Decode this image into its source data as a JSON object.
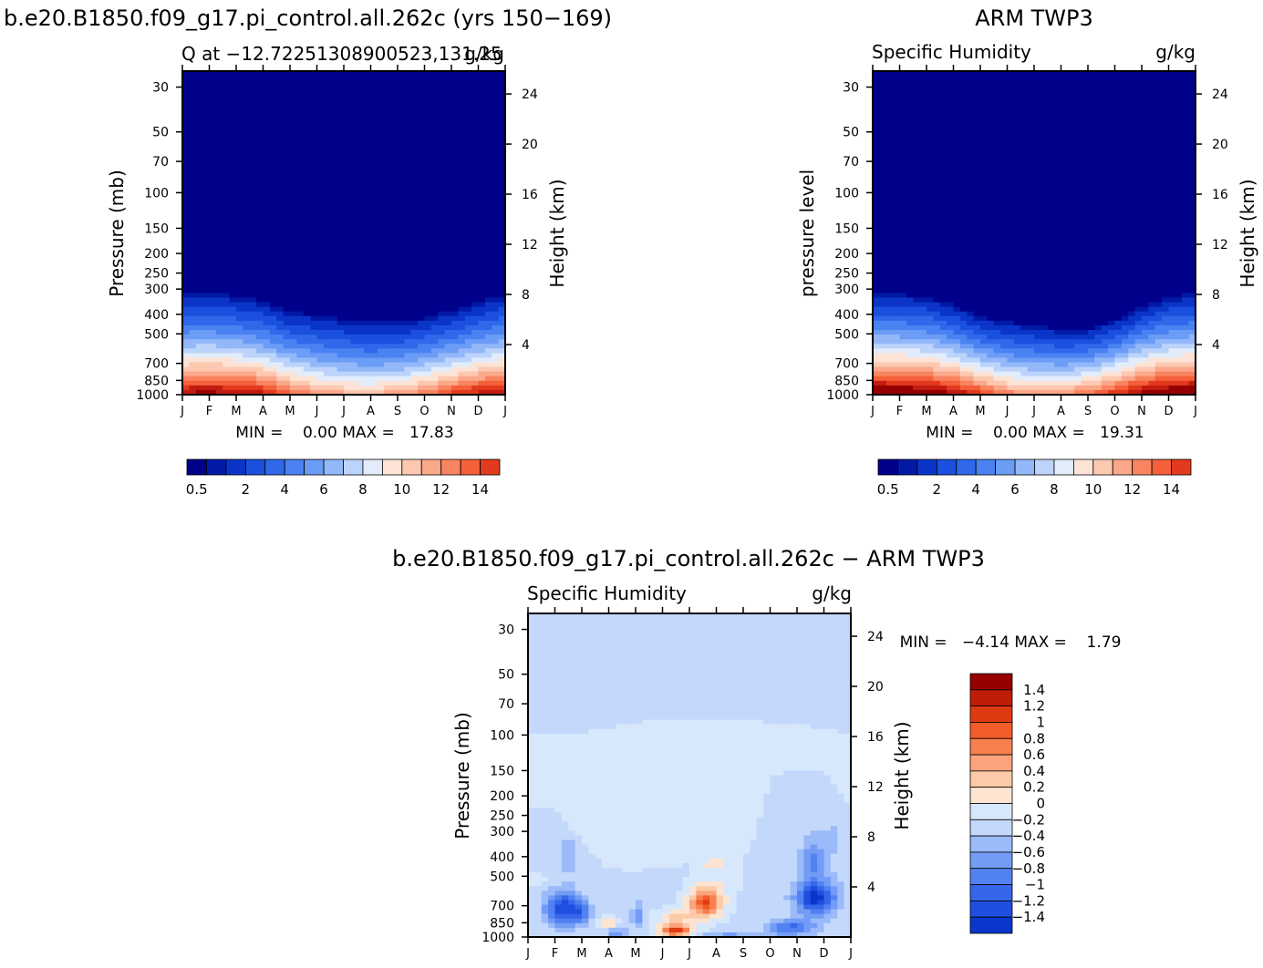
{
  "header": {
    "model_title": "b.e20.B1850.f09_g17.pi_control.all.262c (yrs 150−169)",
    "obs_title": "ARM TWP3",
    "diff_title": "b.e20.B1850.f09_g17.pi_control.all.262c − ARM TWP3"
  },
  "colors": {
    "abs_levels": [
      "#00008b",
      "#001aa6",
      "#0a35c8",
      "#1a50dd",
      "#2f68ea",
      "#4a82f2",
      "#6b9cf6",
      "#93b8f9",
      "#bcd4fb",
      "#e2ecfb",
      "#fde3d5",
      "#fcc8b0",
      "#fba78a",
      "#f98460",
      "#f4603a",
      "#e23a1e",
      "#c21c10",
      "#960000"
    ],
    "diff_levels": [
      "#00148f",
      "#0020b2",
      "#0b36cc",
      "#1f4fdf",
      "#3666ea",
      "#5282f2",
      "#729cf6",
      "#9abaf9",
      "#c4d8fb",
      "#d8e8fc",
      "#fde4d1",
      "#fccaa7",
      "#fba47c",
      "#f8804f",
      "#f25c28",
      "#e03a12",
      "#bf1d06",
      "#960000"
    ]
  },
  "chart_data": [
    {
      "id": "model",
      "type": "heatmap",
      "subtitle_left": "Q at −12.72251308900523,131.25",
      "subtitle_right": "g/kg",
      "ylabel": "Pressure (mb)",
      "ylabel_right": "Height (km)",
      "months": [
        "J",
        "F",
        "M",
        "A",
        "M",
        "J",
        "J",
        "A",
        "S",
        "O",
        "N",
        "D",
        "J"
      ],
      "pressure_ticks": [
        30,
        50,
        70,
        100,
        150,
        200,
        250,
        300,
        400,
        500,
        700,
        850,
        1000
      ],
      "height_ticks": [
        4,
        8,
        12,
        16,
        20,
        24
      ],
      "ylim": [
        25,
        1000
      ],
      "stats": "MIN =    0.00 MAX =   17.83",
      "colorbar_labels": [
        "0.5",
        "2",
        "4",
        "6",
        "8",
        "10",
        "12",
        "14"
      ],
      "colorbar_orientation": "horizontal",
      "surface_q": [
        16.2,
        16.4,
        16.0,
        15.2,
        13.4,
        12.0,
        11.2,
        11.0,
        11.5,
        12.6,
        14.2,
        15.4,
        16.2
      ],
      "moist_top_hpa": [
        305,
        300,
        310,
        330,
        375,
        385,
        405,
        420,
        420,
        400,
        370,
        335,
        305
      ],
      "bl_depth_hpa": [
        200,
        205,
        195,
        180,
        155,
        130,
        118,
        118,
        125,
        140,
        170,
        192,
        200
      ]
    },
    {
      "id": "obs",
      "type": "heatmap",
      "subtitle_left": "Specific Humidity",
      "subtitle_right": "g/kg",
      "ylabel": "pressure level",
      "ylabel_right": "Height (km)",
      "months": [
        "J",
        "F",
        "M",
        "A",
        "M",
        "J",
        "J",
        "A",
        "S",
        "O",
        "N",
        "D",
        "J"
      ],
      "pressure_ticks": [
        30,
        50,
        70,
        100,
        150,
        200,
        250,
        300,
        400,
        500,
        700,
        850,
        1000
      ],
      "height_ticks": [
        4,
        8,
        12,
        16,
        20,
        24
      ],
      "ylim": [
        25,
        1000
      ],
      "stats": "MIN =    0.00 MAX =   19.31",
      "colorbar_labels": [
        "0.5",
        "2",
        "4",
        "6",
        "8",
        "10",
        "12",
        "14"
      ],
      "colorbar_orientation": "horizontal",
      "surface_q": [
        17.6,
        17.5,
        17.2,
        16.0,
        14.2,
        12.4,
        11.8,
        12.0,
        12.8,
        14.6,
        16.4,
        17.4,
        17.6
      ],
      "moist_top_hpa": [
        305,
        305,
        315,
        345,
        400,
        420,
        440,
        465,
        460,
        420,
        355,
        315,
        305
      ],
      "bl_depth_hpa": [
        210,
        210,
        200,
        185,
        150,
        118,
        105,
        108,
        122,
        150,
        185,
        205,
        210
      ]
    },
    {
      "id": "diff",
      "type": "heatmap",
      "subtitle_left": "Specific Humidity",
      "subtitle_right": "g/kg",
      "ylabel": "Pressure (mb)",
      "ylabel_right": "Height (km)",
      "months": [
        "J",
        "F",
        "M",
        "A",
        "M",
        "J",
        "J",
        "A",
        "S",
        "O",
        "N",
        "D",
        "J"
      ],
      "pressure_ticks": [
        30,
        50,
        70,
        100,
        150,
        200,
        250,
        300,
        400,
        500,
        700,
        850,
        1000
      ],
      "height_ticks": [
        4,
        8,
        12,
        16,
        20,
        24
      ],
      "ylim": [
        25,
        1000
      ],
      "stats": "MIN =   −4.14 MAX =    1.79",
      "colorbar_labels": [
        "1.4",
        "1.2",
        "1",
        "0.8",
        "0.6",
        "0.4",
        "0.2",
        "0",
        "−0.2",
        "−0.4",
        "−0.6",
        "−0.8",
        "−1",
        "−1.2",
        "−1.4"
      ],
      "colorbar_orientation": "vertical",
      "positive_layer_top_hpa": [
        100,
        100,
        98,
        92,
        87,
        85,
        83,
        82,
        84,
        87,
        90,
        92,
        100
      ],
      "positive_layer_bottom_hpa": [
        225,
        235,
        330,
        460,
        470,
        450,
        440,
        450,
        420,
        160,
        150,
        150,
        225
      ],
      "anomalies": [
        {
          "month": 1.3,
          "p": 720,
          "dm": 0.65,
          "dlogp": 0.085,
          "amp": -1.1
        },
        {
          "month": 2.0,
          "p": 760,
          "dm": 0.35,
          "dlogp": 0.05,
          "amp": -0.6
        },
        {
          "month": 1.5,
          "p": 400,
          "dm": 0.3,
          "dlogp": 0.1,
          "amp": -0.3
        },
        {
          "month": 0.3,
          "p": 520,
          "dm": 0.45,
          "dlogp": 0.025,
          "amp": 0.25
        },
        {
          "month": 4.1,
          "p": 780,
          "dm": 0.22,
          "dlogp": 0.06,
          "amp": -0.55
        },
        {
          "month": 3.0,
          "p": 840,
          "dm": 0.3,
          "dlogp": 0.03,
          "amp": 0.5
        },
        {
          "month": 3.3,
          "p": 960,
          "dm": 0.4,
          "dlogp": 0.025,
          "amp": -0.5
        },
        {
          "month": 6.6,
          "p": 680,
          "dm": 0.6,
          "dlogp": 0.07,
          "amp": 1.25
        },
        {
          "month": 5.5,
          "p": 800,
          "dm": 0.7,
          "dlogp": 0.04,
          "amp": 0.5
        },
        {
          "month": 5.5,
          "p": 930,
          "dm": 0.55,
          "dlogp": 0.03,
          "amp": 1.45
        },
        {
          "month": 7.0,
          "p": 500,
          "dm": 0.9,
          "dlogp": 0.1,
          "amp": 0.2
        },
        {
          "month": 10.7,
          "p": 640,
          "dm": 0.75,
          "dlogp": 0.08,
          "amp": -1.25
        },
        {
          "month": 9.8,
          "p": 900,
          "dm": 0.9,
          "dlogp": 0.04,
          "amp": -0.8
        },
        {
          "month": 10.6,
          "p": 420,
          "dm": 0.45,
          "dlogp": 0.1,
          "amp": -0.55
        },
        {
          "month": 7.5,
          "p": 985,
          "dm": 1.3,
          "dlogp": 0.015,
          "amp": -0.4
        },
        {
          "month": 11.4,
          "p": 300,
          "dm": 0.9,
          "dlogp": 0.25,
          "amp": -0.15
        }
      ]
    }
  ]
}
